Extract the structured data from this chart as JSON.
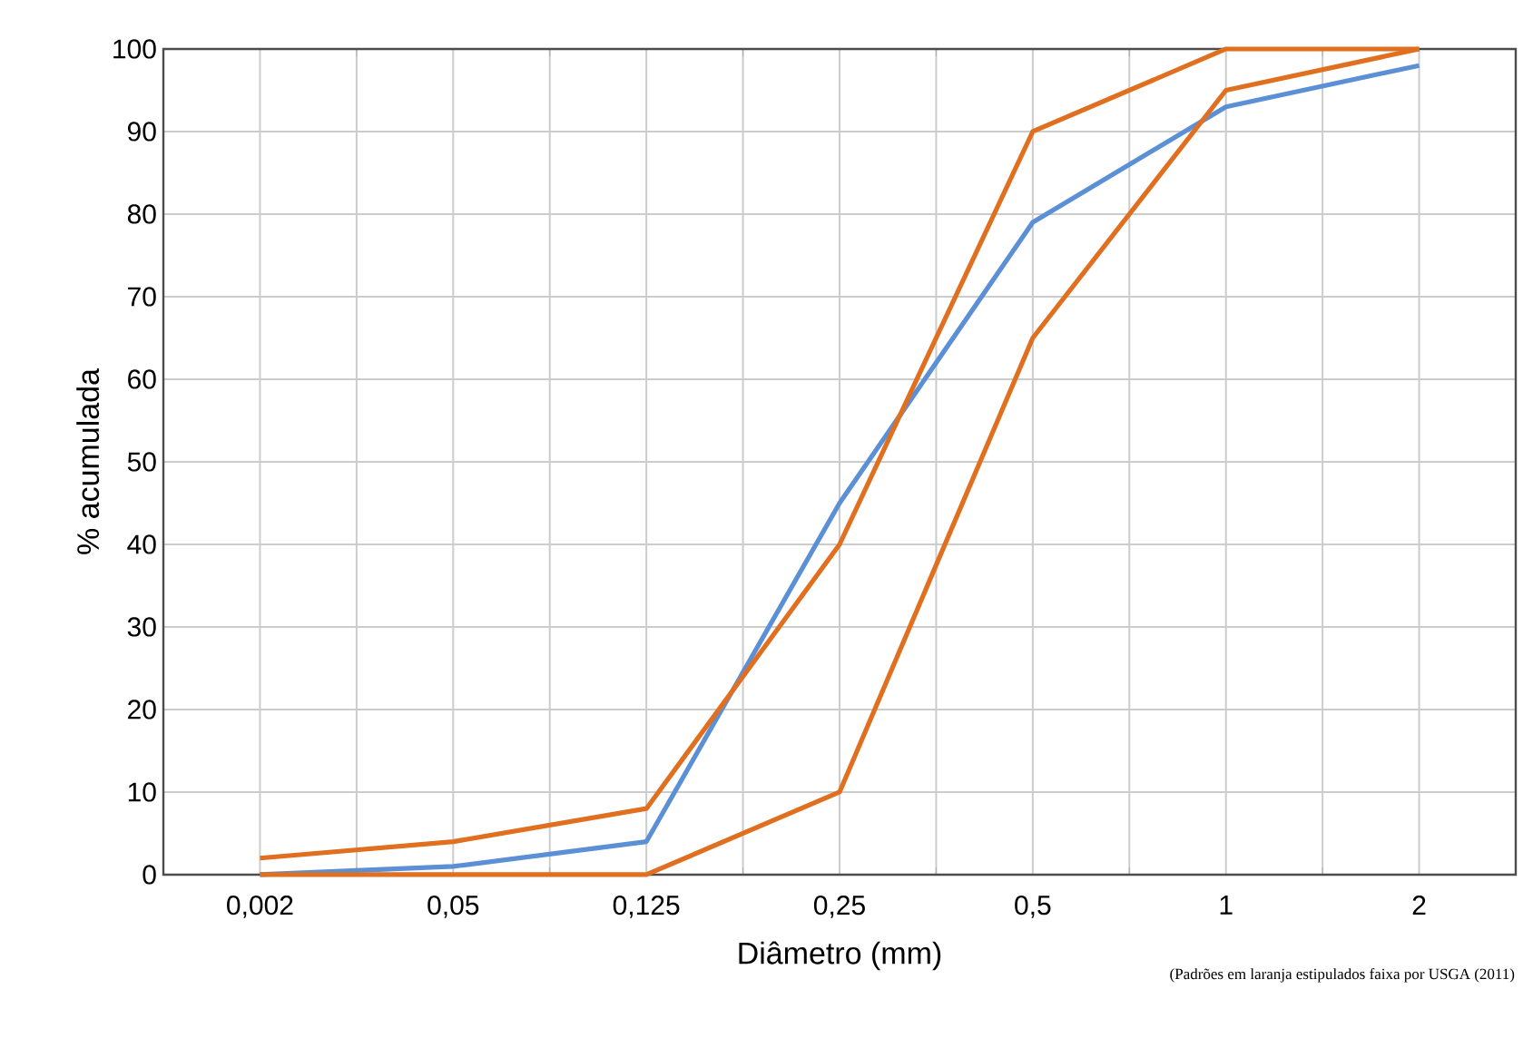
{
  "chart_data": {
    "type": "line",
    "xlabel": "Diâmetro (mm)",
    "ylabel": "% acumulada",
    "categories": [
      "0,002",
      "0,05",
      "0,125",
      "0,25",
      "0,5",
      "1",
      "2"
    ],
    "series": [
      {
        "color": "#5b8fd6",
        "values": [
          0,
          1,
          4,
          45,
          79,
          93,
          98
        ]
      },
      {
        "color": "#e07020",
        "values": [
          2,
          4,
          8,
          40,
          90,
          100,
          100
        ]
      },
      {
        "color": "#e07020",
        "values": [
          0,
          0,
          0,
          10,
          65,
          95,
          100
        ]
      }
    ],
    "ylim": [
      0,
      100
    ],
    "yticks": [
      0,
      10,
      20,
      30,
      40,
      50,
      60,
      70,
      80,
      90,
      100
    ],
    "grid": true,
    "marker": "none",
    "line_style": "solid",
    "annotations": [
      "(Padrões em laranja estipulados faixa por USGA (2011)"
    ]
  }
}
